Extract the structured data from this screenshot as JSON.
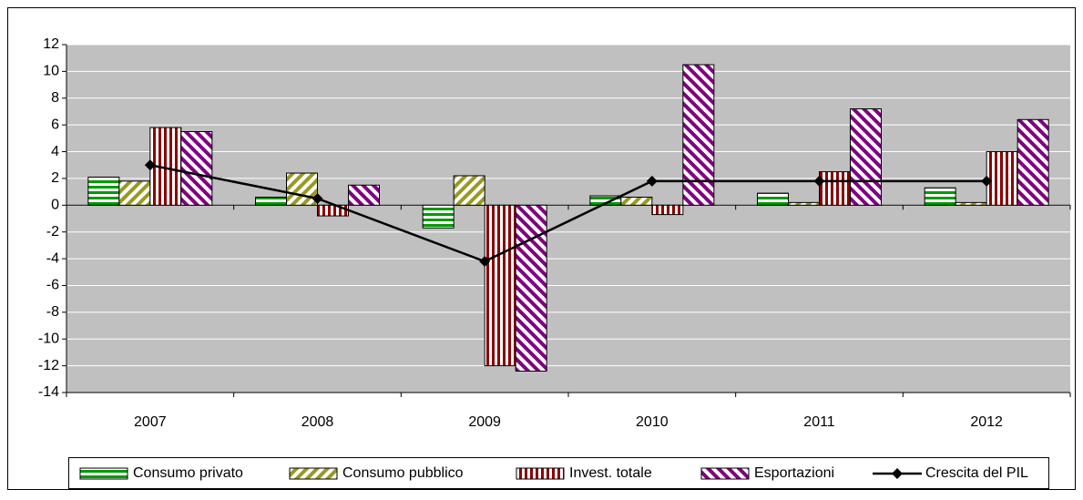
{
  "chart_data": {
    "type": "bar",
    "categories": [
      "2007",
      "2008",
      "2009",
      "2010",
      "2011",
      "2012"
    ],
    "series": [
      {
        "name": "Consumo privato",
        "color": "#009a00",
        "pattern": "horizontal",
        "values": [
          2.1,
          0.6,
          -1.7,
          0.7,
          0.9,
          1.3
        ]
      },
      {
        "name": "Consumo pubblico",
        "color": "#999922",
        "pattern": "diagonal-up",
        "values": [
          1.8,
          2.4,
          2.2,
          0.6,
          0.2,
          0.2
        ]
      },
      {
        "name": "Invest. totale",
        "color": "#8b0000",
        "pattern": "vertical",
        "values": [
          5.8,
          -0.8,
          -12.0,
          -0.7,
          2.5,
          4.0
        ]
      },
      {
        "name": "Esportazioni",
        "color": "#800080",
        "pattern": "diagonal-down",
        "values": [
          5.5,
          1.5,
          -12.4,
          10.5,
          7.2,
          6.4
        ]
      },
      {
        "name": "Crescita del PIL",
        "color": "#000000",
        "type": "line",
        "values": [
          3.0,
          0.5,
          -4.2,
          1.8,
          1.8,
          1.8
        ]
      }
    ],
    "ylim": [
      -14,
      12
    ],
    "yticks": [
      -14,
      -12,
      -10,
      -8,
      -6,
      -4,
      -2,
      0,
      2,
      4,
      6,
      8,
      10,
      12
    ],
    "grid": true,
    "legend": "bottom",
    "plot_background": "#c0c0c0"
  }
}
